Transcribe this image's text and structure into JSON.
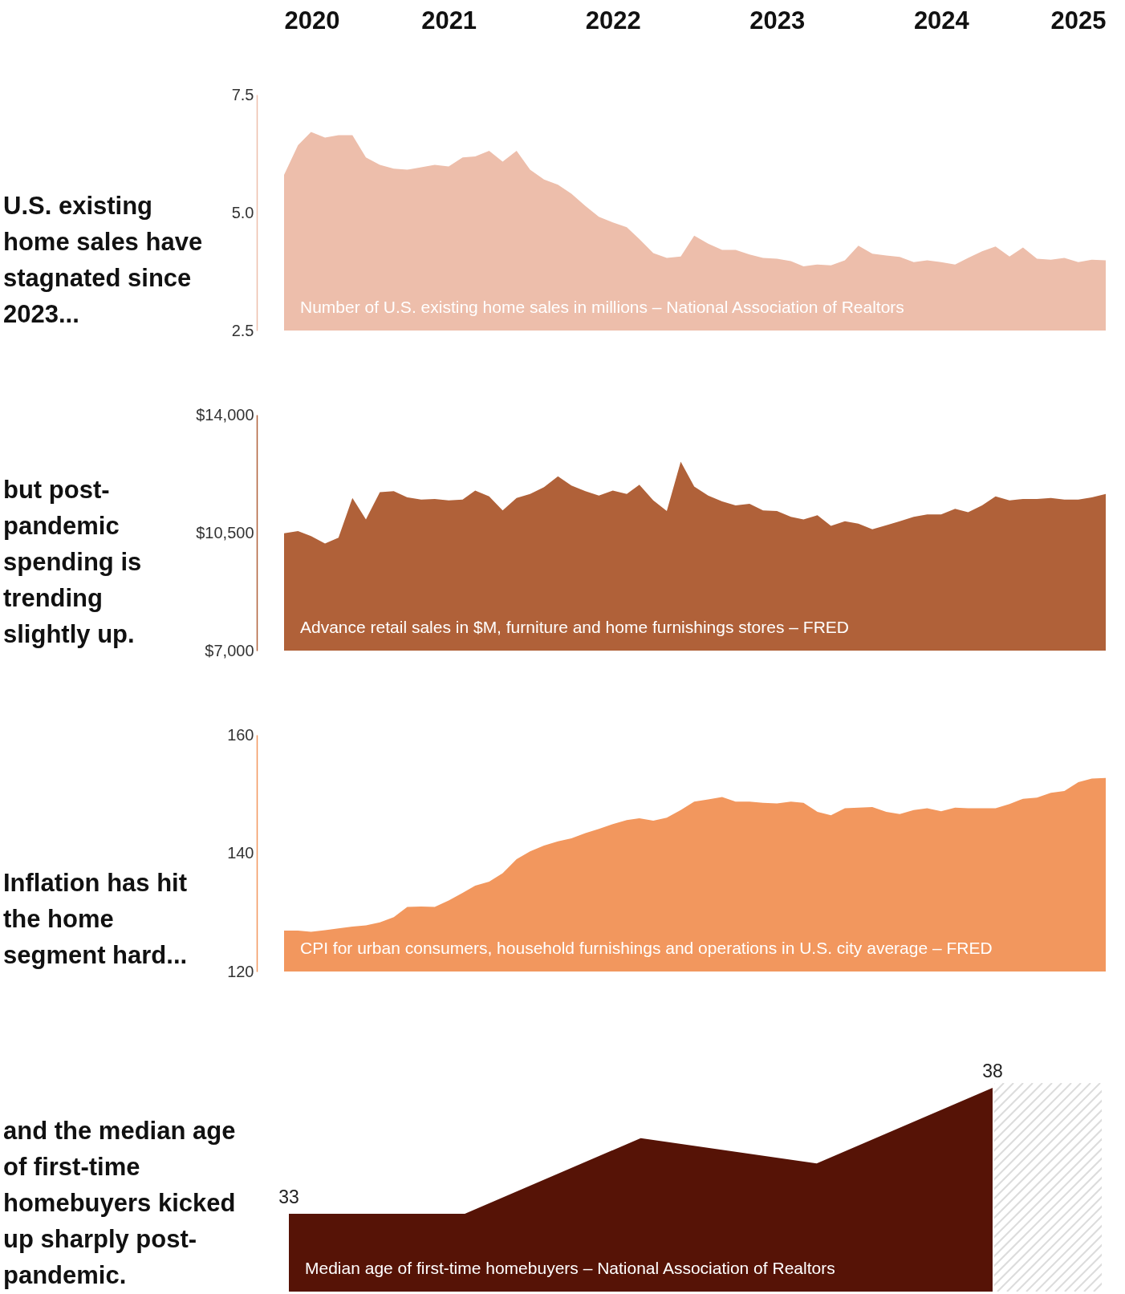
{
  "chart_data": [
    {
      "type": "area",
      "title": "U.S. existing home sales have stagnated since 2023...",
      "color": "#edbeab",
      "x": [
        "2020-01",
        "2020-02",
        "2020-03",
        "2020-04",
        "2020-05",
        "2020-06",
        "2020-07",
        "2020-08",
        "2020-09",
        "2020-10",
        "2020-11",
        "2020-12",
        "2021-01",
        "2021-02",
        "2021-03",
        "2021-04",
        "2021-05",
        "2021-06",
        "2021-07",
        "2021-08",
        "2021-09",
        "2021-10",
        "2021-11",
        "2021-12",
        "2022-01",
        "2022-02",
        "2022-03",
        "2022-04",
        "2022-05",
        "2022-06",
        "2022-07",
        "2022-08",
        "2022-09",
        "2022-10",
        "2022-11",
        "2022-12",
        "2023-01",
        "2023-02",
        "2023-03",
        "2023-04",
        "2023-05",
        "2023-06",
        "2023-07",
        "2023-08",
        "2023-09",
        "2023-10",
        "2023-11",
        "2023-12",
        "2024-01",
        "2024-02",
        "2024-03",
        "2024-04",
        "2024-05",
        "2024-06",
        "2024-07",
        "2024-08",
        "2024-09",
        "2024-10",
        "2024-11",
        "2024-12",
        "2025-01"
      ],
      "values": [
        5.8,
        6.43,
        6.71,
        6.59,
        6.64,
        6.64,
        6.17,
        6.01,
        5.93,
        5.91,
        5.96,
        6.01,
        5.98,
        6.17,
        6.19,
        6.31,
        6.08,
        6.31,
        5.91,
        5.7,
        5.59,
        5.4,
        5.14,
        4.91,
        4.79,
        4.69,
        4.44,
        4.14,
        4.04,
        4.07,
        4.51,
        4.34,
        4.21,
        4.21,
        4.11,
        4.04,
        4.02,
        3.97,
        3.86,
        3.9,
        3.88,
        3.99,
        4.3,
        4.13,
        4.09,
        4.06,
        3.95,
        3.99,
        3.95,
        3.9,
        4.04,
        4.18,
        4.28,
        4.07,
        4.26,
        4.02,
        4.0,
        4.04,
        3.95,
        4.0,
        3.99
      ],
      "xlim": [
        "2020-01",
        "2025-01"
      ],
      "xticks": [
        "2020",
        "2021",
        "2022",
        "2023",
        "2024",
        "2025"
      ],
      "ylim": [
        2.5,
        7.5
      ],
      "yticks": [
        2.5,
        {
          "value": 5,
          "label": "5.0"
        },
        7.5
      ],
      "annotations": [
        "Number of U.S. existing home sales in millions – National Association of Realtors"
      ]
    },
    {
      "type": "area",
      "title": "but post-pandemic spending is trending slightly up.",
      "color": "#b06139",
      "x": [
        "2020-01",
        "2020-02",
        "2020-03",
        "2020-04",
        "2020-05",
        "2020-06",
        "2020-07",
        "2020-08",
        "2020-09",
        "2020-10",
        "2020-11",
        "2020-12",
        "2021-01",
        "2021-02",
        "2021-03",
        "2021-04",
        "2021-05",
        "2021-06",
        "2021-07",
        "2021-08",
        "2021-09",
        "2021-10",
        "2021-11",
        "2021-12",
        "2022-01",
        "2022-02",
        "2022-03",
        "2022-04",
        "2022-05",
        "2022-06",
        "2022-07",
        "2022-08",
        "2022-09",
        "2022-10",
        "2022-11",
        "2022-12",
        "2023-01",
        "2023-02",
        "2023-03",
        "2023-04",
        "2023-05",
        "2023-06",
        "2023-07",
        "2023-08",
        "2023-09",
        "2023-10",
        "2023-11",
        "2023-12",
        "2024-01",
        "2024-02",
        "2024-03",
        "2024-04",
        "2024-05",
        "2024-06",
        "2024-07",
        "2024-08",
        "2024-09",
        "2024-10",
        "2024-11",
        "2024-12",
        "2025-01"
      ],
      "values": [
        10480,
        10550,
        10400,
        10180,
        10350,
        11530,
        10890,
        11700,
        11730,
        11550,
        11480,
        11500,
        11460,
        11480,
        11750,
        11580,
        11160,
        11530,
        11650,
        11850,
        12170,
        11900,
        11730,
        11600,
        11750,
        11650,
        11920,
        11460,
        11140,
        12610,
        11870,
        11600,
        11430,
        11310,
        11360,
        11160,
        11140,
        10970,
        10890,
        11020,
        10700,
        10840,
        10770,
        10600,
        10720,
        10840,
        10970,
        11040,
        11040,
        11210,
        11110,
        11310,
        11580,
        11460,
        11500,
        11500,
        11530,
        11480,
        11480,
        11550,
        11650
      ],
      "xlim": [
        "2020-01",
        "2025-01"
      ],
      "tick_labels": "y",
      "ylim": [
        7000,
        14000
      ],
      "yticks": [
        {
          "value": 7000,
          "label": "$7,000"
        },
        {
          "value": 10500,
          "label": "$10,500"
        },
        {
          "value": 14000,
          "label": "$14,000"
        }
      ],
      "annotations": [
        "Advance retail sales in $M, furniture and home furnishings stores – FRED"
      ]
    },
    {
      "type": "area",
      "title": "Inflation has hit the home segment hard...",
      "color": "#f2975e",
      "x": [
        "2020-01",
        "2020-02",
        "2020-03",
        "2020-04",
        "2020-05",
        "2020-06",
        "2020-07",
        "2020-08",
        "2020-09",
        "2020-10",
        "2020-11",
        "2020-12",
        "2021-01",
        "2021-02",
        "2021-03",
        "2021-04",
        "2021-05",
        "2021-06",
        "2021-07",
        "2021-08",
        "2021-09",
        "2021-10",
        "2021-11",
        "2021-12",
        "2022-01",
        "2022-02",
        "2022-03",
        "2022-04",
        "2022-05",
        "2022-06",
        "2022-07",
        "2022-08",
        "2022-09",
        "2022-10",
        "2022-11",
        "2022-12",
        "2023-01",
        "2023-02",
        "2023-03",
        "2023-04",
        "2023-05",
        "2023-06",
        "2023-07",
        "2023-08",
        "2023-09",
        "2023-10",
        "2023-11",
        "2023-12",
        "2024-01",
        "2024-02",
        "2024-03",
        "2024-04",
        "2024-05",
        "2024-06",
        "2024-07",
        "2024-08",
        "2024-09",
        "2024-10",
        "2024-11",
        "2024-12",
        "2025-01"
      ],
      "values": [
        126.9,
        126.9,
        126.7,
        127.0,
        127.3,
        127.6,
        127.8,
        128.3,
        129.2,
        130.9,
        131.0,
        130.9,
        132.0,
        133.3,
        134.5,
        135.2,
        136.6,
        139.0,
        140.3,
        141.3,
        142.0,
        142.5,
        143.4,
        144.1,
        144.9,
        145.6,
        145.9,
        145.5,
        146.0,
        147.3,
        148.7,
        149.1,
        149.5,
        148.7,
        148.7,
        148.5,
        148.4,
        148.7,
        148.5,
        147.0,
        146.4,
        147.6,
        147.7,
        147.8,
        147.0,
        146.6,
        147.3,
        147.6,
        147.1,
        147.7,
        147.6,
        147.6,
        147.6,
        148.3,
        149.2,
        149.4,
        150.2,
        150.5,
        152.0,
        152.6,
        152.7
      ],
      "xlim": [
        "2020-01",
        "2025-01"
      ],
      "tick_labels": "y",
      "ylim": [
        120,
        160
      ],
      "yticks": [
        120,
        140,
        160
      ],
      "annotations": [
        "CPI for urban consumers, household furnishings and operations in U.S. city average – FRED"
      ]
    },
    {
      "type": "area",
      "title": "and the median age of first-time homebuyers kicked up sharply post-pandemic.",
      "color": "#561306",
      "categories": [
        null,
        null,
        null,
        null,
        null
      ],
      "values": [
        33,
        33,
        36,
        35,
        38
      ],
      "value_labels": [
        "33",
        null,
        null,
        null,
        "38"
      ],
      "tick_labels": false,
      "annotations": [
        "Median age of first-time homebuyers – National Association of Realtors"
      ]
    }
  ]
}
